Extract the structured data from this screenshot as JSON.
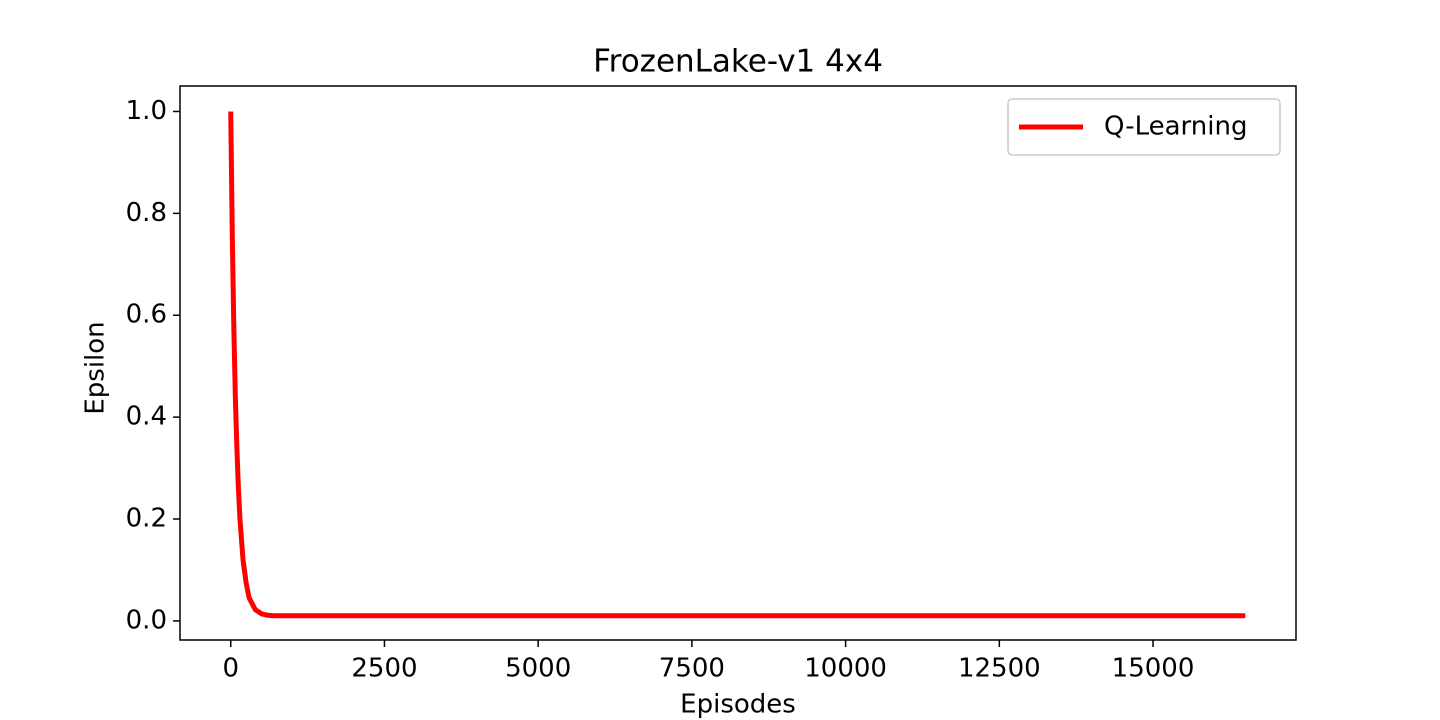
{
  "chart_data": {
    "type": "line",
    "title": "FrozenLake-v1 4x4",
    "x_label": "Episodes",
    "y_label": "Epsilon",
    "x": [
      0,
      25,
      50,
      75,
      100,
      125,
      150,
      200,
      250,
      300,
      400,
      500,
      600,
      700,
      1000,
      5000,
      10000,
      16500
    ],
    "series": [
      {
        "name": "Q-Learning",
        "color": "#ff0000",
        "values": [
          1.0,
          0.76,
          0.58,
          0.44,
          0.34,
          0.26,
          0.2,
          0.12,
          0.075,
          0.045,
          0.022,
          0.014,
          0.011,
          0.01,
          0.01,
          0.01,
          0.01,
          0.01
        ]
      }
    ],
    "xlim": [
      -825,
      17325
    ],
    "ylim": [
      -0.0375,
      1.05
    ],
    "xticks": [
      0,
      2500,
      5000,
      7500,
      10000,
      12500,
      15000
    ],
    "yticks": [
      {
        "value": 0,
        "label": "0.0"
      },
      0.2,
      0.4,
      0.6,
      0.8,
      {
        "value": 1,
        "label": "1.0"
      }
    ],
    "legend": "upper right"
  }
}
